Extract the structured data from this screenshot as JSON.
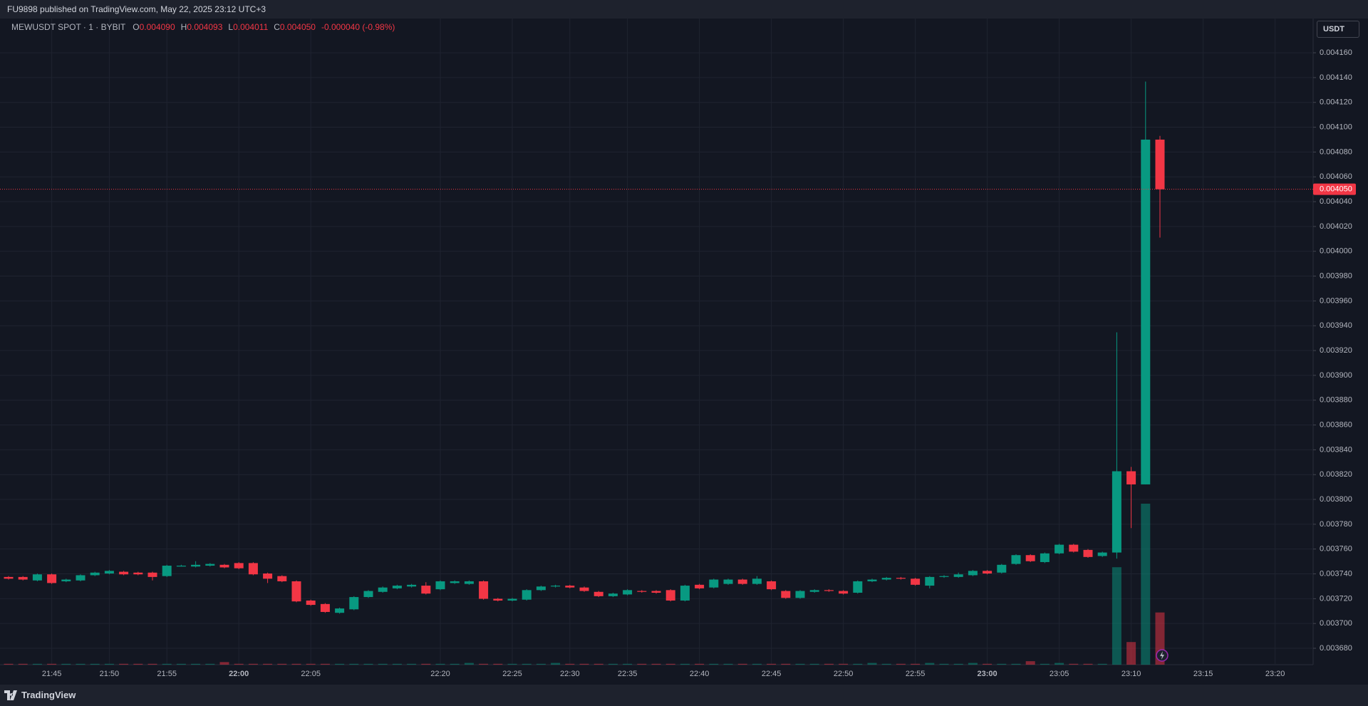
{
  "header": {
    "published": "FU9898 published on TradingView.com, May 22, 2025 23:12 UTC+3"
  },
  "footer": {
    "brand": "TradingView"
  },
  "chart_data": {
    "type": "candlestick",
    "symbol": "MEWUSDT SPOT · 1 · BYBIT",
    "legend": {
      "o_label": "O",
      "o": "0.004090",
      "h_label": "H",
      "h": "0.004093",
      "l_label": "L",
      "l": "0.004011",
      "c_label": "C",
      "c": "0.004050",
      "change": "-0.000040 (-0.98%)"
    },
    "currency": "USDT",
    "up_color": "#089981",
    "down_color": "#f23645",
    "grid": true,
    "last_price": {
      "value": 0.00405,
      "label": "0.004050"
    },
    "categories": [
      null,
      null,
      null,
      "21:45",
      null,
      null,
      null,
      "21:50",
      null,
      null,
      null,
      "21:55",
      null,
      null,
      null,
      null,
      "22:00",
      null,
      null,
      null,
      null,
      "22:05",
      null,
      null,
      null,
      null,
      null,
      null,
      null,
      null,
      "22:20",
      null,
      null,
      null,
      null,
      "22:25",
      null,
      null,
      null,
      "22:30",
      null,
      null,
      null,
      "22:35",
      null,
      null,
      null,
      null,
      "22:40",
      null,
      null,
      null,
      null,
      "22:45",
      null,
      null,
      null,
      null,
      "22:50",
      null,
      null,
      null,
      null,
      "22:55",
      null,
      null,
      null,
      null,
      "23:00",
      null,
      null,
      null,
      null,
      "23:05",
      null,
      null,
      null,
      null,
      "23:10",
      null,
      null,
      null,
      null,
      "23:15",
      null,
      null,
      null,
      null,
      "23:20"
    ],
    "open": [
      0.0037375,
      0.0037375,
      0.0037347,
      0.0037396,
      0.003734,
      0.0037347,
      0.0037389,
      0.0037403,
      0.0037417,
      0.003741,
      0.003741,
      0.0037382,
      0.0037459,
      0.0037459,
      0.0037466,
      0.0037473,
      0.0037487,
      0.0037487,
      0.0037403,
      0.0037382,
      0.003734,
      0.0037185,
      0.0037157,
      0.0037086,
      0.0037114,
      0.0037213,
      0.0037255,
      0.0037283,
      0.0037298,
      0.0037305,
      0.0037276,
      0.0037326,
      0.0037319,
      0.003734,
      0.0037199,
      0.0037185,
      0.0037192,
      0.0037269,
      0.0037298,
      0.0037305,
      0.003729,
      0.0037255,
      0.003722,
      0.0037234,
      0.0037262,
      0.0037262,
      0.0037269,
      0.0037185,
      0.0037312,
      0.003729,
      0.0037319,
      0.0037354,
      0.0037319,
      0.003734,
      0.0037262,
      0.0037206,
      0.0037255,
      0.0037269,
      0.0037262,
      0.0037248,
      0.003734,
      0.0037354,
      0.0037368,
      0.0037361,
      0.0037305,
      0.0037375,
      0.0037375,
      0.0037389,
      0.0037424,
      0.003741,
      0.003748,
      0.0037551,
      0.0037495,
      0.0037565,
      0.0037635,
      0.0037593,
      0.0037544,
      0.0037572,
      0.0038227,
      0.0038121,
      0.00409,
      null,
      null,
      null,
      null,
      null,
      null,
      null,
      null
    ],
    "high": [
      0.0037382,
      0.0037382,
      0.0037403,
      0.0037403,
      0.0037361,
      0.0037396,
      0.0037417,
      0.0037431,
      0.0037424,
      0.0037417,
      0.0037417,
      0.0037473,
      0.0037473,
      0.0037502,
      0.0037487,
      0.003748,
      0.0037494,
      0.0037494,
      0.003741,
      0.0037389,
      0.0037347,
      0.0037192,
      0.0037164,
      0.0037128,
      0.003722,
      0.0037269,
      0.0037298,
      0.0037312,
      0.0037319,
      0.0037333,
      0.0037347,
      0.0037347,
      0.0037347,
      0.0037347,
      0.0037206,
      0.0037206,
      0.0037276,
      0.0037305,
      0.0037312,
      0.0037312,
      0.0037298,
      0.0037262,
      0.0037248,
      0.0037276,
      0.0037269,
      0.0037269,
      0.0037276,
      0.0037312,
      0.0037319,
      0.0037361,
      0.0037361,
      0.0037361,
      0.0037382,
      0.0037347,
      0.0037269,
      0.0037269,
      0.0037276,
      0.0037276,
      0.0037269,
      0.0037347,
      0.0037361,
      0.0037375,
      0.0037375,
      0.0037368,
      0.0037382,
      0.0037389,
      0.003741,
      0.0037431,
      0.0037431,
      0.003748,
      0.0037558,
      0.0037558,
      0.0037572,
      0.0037642,
      0.0037642,
      0.00376,
      0.0037579,
      0.0039347,
      0.0038262,
      0.0041368,
      0.004093,
      null,
      null,
      null,
      null,
      null,
      null,
      null,
      null
    ],
    "low": [
      0.0037354,
      0.0037347,
      0.003734,
      0.0037319,
      0.0037333,
      0.003734,
      0.0037382,
      0.0037396,
      0.0037389,
      0.0037389,
      0.0037347,
      0.0037375,
      0.0037459,
      0.0037452,
      0.0037459,
      0.0037445,
      0.0037438,
      0.0037389,
      0.0037326,
      0.0037333,
      0.0037171,
      0.0037143,
      0.0037086,
      0.0037079,
      0.0037107,
      0.0037206,
      0.0037248,
      0.0037276,
      0.003729,
      0.0037234,
      0.0037269,
      0.0037319,
      0.0037312,
      0.0037192,
      0.0037178,
      0.0037178,
      0.0037185,
      0.0037262,
      0.003729,
      0.0037283,
      0.0037255,
      0.0037213,
      0.0037213,
      0.0037227,
      0.0037248,
      0.0037241,
      0.0037178,
      0.0037178,
      0.0037276,
      0.0037283,
      0.0037312,
      0.0037312,
      0.0037312,
      0.0037269,
      0.0037199,
      0.0037199,
      0.0037248,
      0.0037255,
      0.0037234,
      0.0037241,
      0.0037333,
      0.0037347,
      0.0037354,
      0.0037305,
      0.0037283,
      0.0037368,
      0.0037368,
      0.0037382,
      0.0037396,
      0.0037403,
      0.0037473,
      0.0037495,
      0.0037487,
      0.0037558,
      0.0037572,
      0.0037529,
      0.0037536,
      0.0037523,
      0.0037769,
      0.0038121,
      0.004011,
      null,
      null,
      null,
      null,
      null,
      null,
      null,
      null
    ],
    "close": [
      0.0037361,
      0.0037354,
      0.0037396,
      0.0037326,
      0.0037354,
      0.0037389,
      0.003741,
      0.0037424,
      0.0037396,
      0.0037396,
      0.0037375,
      0.0037466,
      0.0037466,
      0.0037473,
      0.003748,
      0.0037452,
      0.0037445,
      0.0037396,
      0.0037361,
      0.003734,
      0.0037178,
      0.003715,
      0.0037093,
      0.0037121,
      0.0037213,
      0.0037262,
      0.003729,
      0.0037305,
      0.0037312,
      0.0037241,
      0.003734,
      0.003734,
      0.003734,
      0.0037199,
      0.0037185,
      0.0037199,
      0.0037269,
      0.0037298,
      0.0037305,
      0.003729,
      0.0037262,
      0.003722,
      0.0037241,
      0.0037269,
      0.0037255,
      0.0037248,
      0.0037185,
      0.0037305,
      0.0037283,
      0.0037354,
      0.0037354,
      0.0037319,
      0.0037361,
      0.0037276,
      0.0037206,
      0.0037262,
      0.0037269,
      0.0037262,
      0.0037241,
      0.003734,
      0.0037354,
      0.0037368,
      0.0037361,
      0.0037312,
      0.0037375,
      0.0037382,
      0.0037396,
      0.0037424,
      0.0037403,
      0.0037473,
      0.0037551,
      0.0037502,
      0.0037565,
      0.0037635,
      0.0037579,
      0.0037536,
      0.0037572,
      0.0038227,
      0.0038121,
      0.00409,
      0.00405,
      null,
      null,
      null,
      null,
      null,
      null,
      null,
      null
    ],
    "volume": [
      1,
      1,
      1,
      1,
      1,
      1,
      1,
      1,
      1,
      1,
      1,
      1,
      1,
      1,
      1,
      3,
      1,
      1,
      1,
      1,
      1,
      1,
      1,
      1,
      1,
      1,
      1,
      1,
      1,
      1,
      1,
      1,
      2,
      1,
      1,
      1,
      1,
      1,
      2,
      1,
      1,
      1,
      1,
      1,
      1,
      1,
      1,
      1,
      1,
      1,
      1,
      1,
      1,
      1,
      1,
      1,
      1,
      1,
      1,
      1,
      2,
      1,
      1,
      1,
      2,
      1,
      1,
      2,
      1,
      1,
      1,
      4,
      1,
      2,
      1,
      1,
      1,
      112,
      26,
      185,
      60,
      null,
      null,
      null,
      null,
      null,
      null,
      null,
      null
    ],
    "ylim": [
      0.0036668,
      0.0041876
    ],
    "yticks": [
      {
        "value": 0.00368,
        "label": "0.003680"
      },
      {
        "value": 0.0037,
        "label": "0.003700"
      },
      {
        "value": 0.00372,
        "label": "0.003720"
      },
      {
        "value": 0.00374,
        "label": "0.003740"
      },
      {
        "value": 0.00376,
        "label": "0.003760"
      },
      {
        "value": 0.00378,
        "label": "0.003780"
      },
      {
        "value": 0.0038,
        "label": "0.003800"
      },
      {
        "value": 0.00382,
        "label": "0.003820"
      },
      {
        "value": 0.00384,
        "label": "0.003840"
      },
      {
        "value": 0.00386,
        "label": "0.003860"
      },
      {
        "value": 0.00388,
        "label": "0.003880"
      },
      {
        "value": 0.0039,
        "label": "0.003900"
      },
      {
        "value": 0.00392,
        "label": "0.003920"
      },
      {
        "value": 0.00394,
        "label": "0.003940"
      },
      {
        "value": 0.00396,
        "label": "0.003960"
      },
      {
        "value": 0.00398,
        "label": "0.003980"
      },
      {
        "value": 0.004,
        "label": "0.004000"
      },
      {
        "value": 0.00402,
        "label": "0.004020"
      },
      {
        "value": 0.00404,
        "label": "0.004040"
      },
      {
        "value": 0.00406,
        "label": "0.004060"
      },
      {
        "value": 0.00408,
        "label": "0.004080"
      },
      {
        "value": 0.0041,
        "label": "0.004100"
      },
      {
        "value": 0.00412,
        "label": "0.004120"
      },
      {
        "value": 0.00414,
        "label": "0.004140"
      },
      {
        "value": 0.00416,
        "label": "0.004160"
      }
    ]
  }
}
